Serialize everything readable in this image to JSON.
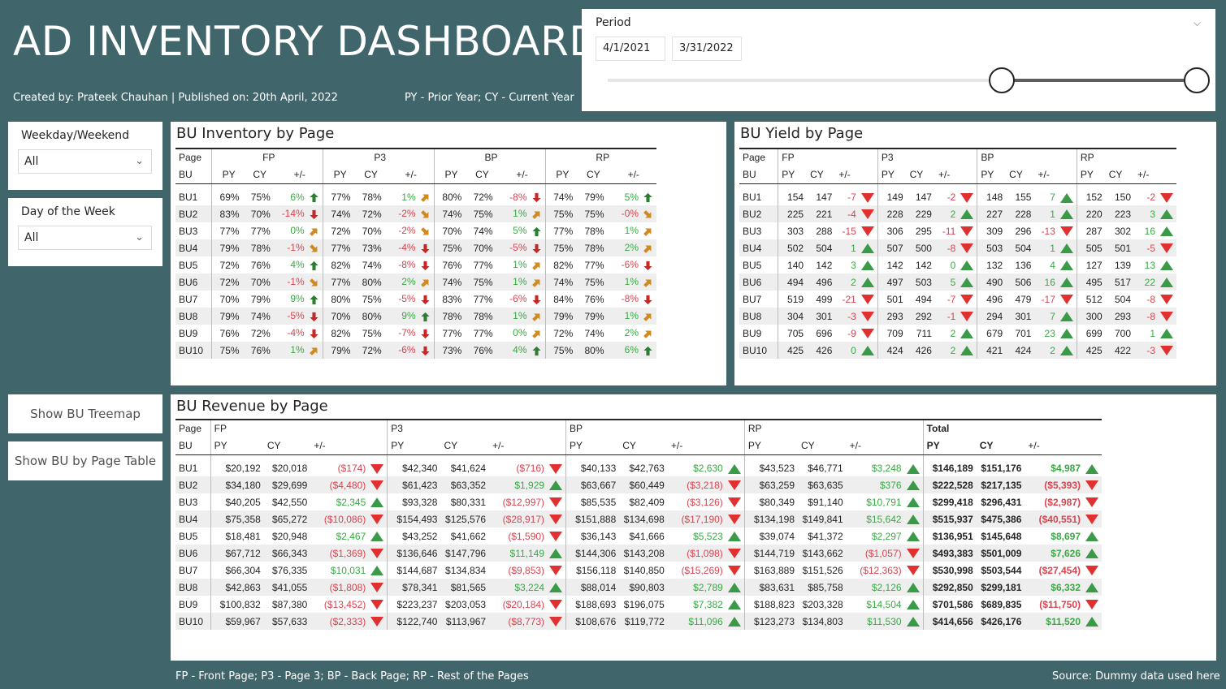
{
  "header": {
    "title": "AD INVENTORY DASHBOARD",
    "credits": "Created by: Prateek Chauhan | Published on: 20th April, 2022",
    "legend_note": "PY - Prior Year; CY - Current Year"
  },
  "period": {
    "label": "Period",
    "start": "4/1/2021",
    "end": "3/31/2022"
  },
  "filters": {
    "weekday_weekend": {
      "label": "Weekday/Weekend",
      "value": "All"
    },
    "day_of_week": {
      "label": "Day of the Week",
      "value": "All"
    }
  },
  "nav": {
    "treemap": "Show BU Treemap",
    "page_table": "Show BU by Page Table"
  },
  "footer": {
    "note": "FP - Front Page; P3 - Page 3; BP - Back Page; RP - Rest of the Pages",
    "source": "Source: Dummy data used here"
  },
  "labels": {
    "page": "Page",
    "bu": "BU",
    "py": "PY",
    "cy": "CY",
    "diff": "+/-",
    "total": "Total"
  },
  "pages": [
    "FP",
    "P3",
    "BP",
    "RP"
  ],
  "inventory": {
    "title": "BU Inventory by Page",
    "rows": [
      [
        "BU1",
        [
          "69%",
          "75%",
          "6%",
          "up"
        ],
        [
          "77%",
          "78%",
          "1%",
          "ur"
        ],
        [
          "80%",
          "72%",
          "-8%",
          "dn"
        ],
        [
          "74%",
          "79%",
          "5%",
          "up"
        ]
      ],
      [
        "BU2",
        [
          "83%",
          "70%",
          "-14%",
          "dn"
        ],
        [
          "74%",
          "72%",
          "-2%",
          "dr"
        ],
        [
          "74%",
          "75%",
          "1%",
          "ur"
        ],
        [
          "75%",
          "75%",
          "-0%",
          "dr"
        ]
      ],
      [
        "BU3",
        [
          "77%",
          "77%",
          "0%",
          "ur"
        ],
        [
          "72%",
          "70%",
          "-2%",
          "dr"
        ],
        [
          "70%",
          "74%",
          "5%",
          "up"
        ],
        [
          "77%",
          "78%",
          "1%",
          "ur"
        ]
      ],
      [
        "BU4",
        [
          "79%",
          "78%",
          "-1%",
          "dr"
        ],
        [
          "77%",
          "73%",
          "-4%",
          "dn"
        ],
        [
          "75%",
          "70%",
          "-5%",
          "dn"
        ],
        [
          "75%",
          "78%",
          "2%",
          "ur"
        ]
      ],
      [
        "BU5",
        [
          "72%",
          "76%",
          "4%",
          "up"
        ],
        [
          "82%",
          "74%",
          "-8%",
          "dn"
        ],
        [
          "76%",
          "77%",
          "1%",
          "ur"
        ],
        [
          "82%",
          "77%",
          "-6%",
          "dn"
        ]
      ],
      [
        "BU6",
        [
          "72%",
          "70%",
          "-1%",
          "dr"
        ],
        [
          "77%",
          "80%",
          "2%",
          "ur"
        ],
        [
          "74%",
          "75%",
          "1%",
          "ur"
        ],
        [
          "74%",
          "75%",
          "1%",
          "ur"
        ]
      ],
      [
        "BU7",
        [
          "70%",
          "79%",
          "9%",
          "up"
        ],
        [
          "80%",
          "75%",
          "-5%",
          "dn"
        ],
        [
          "83%",
          "77%",
          "-6%",
          "dn"
        ],
        [
          "84%",
          "76%",
          "-8%",
          "dn"
        ]
      ],
      [
        "BU8",
        [
          "79%",
          "74%",
          "-5%",
          "dn"
        ],
        [
          "70%",
          "80%",
          "9%",
          "up"
        ],
        [
          "78%",
          "78%",
          "1%",
          "ur"
        ],
        [
          "79%",
          "79%",
          "1%",
          "ur"
        ]
      ],
      [
        "BU9",
        [
          "76%",
          "72%",
          "-4%",
          "dn"
        ],
        [
          "82%",
          "75%",
          "-7%",
          "dn"
        ],
        [
          "77%",
          "77%",
          "0%",
          "ur"
        ],
        [
          "72%",
          "74%",
          "2%",
          "ur"
        ]
      ],
      [
        "BU10",
        [
          "75%",
          "76%",
          "1%",
          "ur"
        ],
        [
          "79%",
          "72%",
          "-6%",
          "dn"
        ],
        [
          "73%",
          "76%",
          "4%",
          "up"
        ],
        [
          "75%",
          "80%",
          "6%",
          "up"
        ]
      ]
    ]
  },
  "yield": {
    "title": "BU Yield by Page",
    "rows": [
      [
        "BU1",
        [
          "154",
          "147",
          "-7",
          "dn"
        ],
        [
          "149",
          "147",
          "-2",
          "dn"
        ],
        [
          "148",
          "155",
          "7",
          "up"
        ],
        [
          "152",
          "150",
          "-2",
          "dn"
        ]
      ],
      [
        "BU2",
        [
          "225",
          "221",
          "-4",
          "dn"
        ],
        [
          "228",
          "229",
          "2",
          "up"
        ],
        [
          "227",
          "228",
          "1",
          "up"
        ],
        [
          "220",
          "223",
          "3",
          "up"
        ]
      ],
      [
        "BU3",
        [
          "303",
          "288",
          "-15",
          "dn"
        ],
        [
          "306",
          "295",
          "-11",
          "dn"
        ],
        [
          "309",
          "296",
          "-13",
          "dn"
        ],
        [
          "287",
          "302",
          "16",
          "up"
        ]
      ],
      [
        "BU4",
        [
          "502",
          "504",
          "1",
          "up"
        ],
        [
          "507",
          "500",
          "-8",
          "dn"
        ],
        [
          "503",
          "504",
          "1",
          "up"
        ],
        [
          "505",
          "501",
          "-5",
          "dn"
        ]
      ],
      [
        "BU5",
        [
          "140",
          "142",
          "3",
          "up"
        ],
        [
          "142",
          "142",
          "0",
          "up"
        ],
        [
          "132",
          "136",
          "4",
          "up"
        ],
        [
          "127",
          "139",
          "13",
          "up"
        ]
      ],
      [
        "BU6",
        [
          "494",
          "496",
          "2",
          "up"
        ],
        [
          "497",
          "503",
          "5",
          "up"
        ],
        [
          "490",
          "506",
          "16",
          "up"
        ],
        [
          "495",
          "517",
          "22",
          "up"
        ]
      ],
      [
        "BU7",
        [
          "519",
          "499",
          "-21",
          "dn"
        ],
        [
          "501",
          "494",
          "-7",
          "dn"
        ],
        [
          "496",
          "479",
          "-17",
          "dn"
        ],
        [
          "512",
          "504",
          "-8",
          "dn"
        ]
      ],
      [
        "BU8",
        [
          "304",
          "301",
          "-3",
          "dn"
        ],
        [
          "293",
          "292",
          "-1",
          "dn"
        ],
        [
          "294",
          "301",
          "7",
          "up"
        ],
        [
          "300",
          "293",
          "-8",
          "dn"
        ]
      ],
      [
        "BU9",
        [
          "705",
          "696",
          "-9",
          "dn"
        ],
        [
          "709",
          "711",
          "2",
          "up"
        ],
        [
          "679",
          "701",
          "23",
          "up"
        ],
        [
          "699",
          "700",
          "1",
          "up"
        ]
      ],
      [
        "BU10",
        [
          "425",
          "426",
          "0",
          "up"
        ],
        [
          "424",
          "426",
          "2",
          "up"
        ],
        [
          "421",
          "424",
          "2",
          "up"
        ],
        [
          "425",
          "422",
          "-3",
          "dn"
        ]
      ]
    ]
  },
  "revenue": {
    "title": "BU Revenue by Page",
    "rows": [
      [
        "BU1",
        [
          "$20,192",
          "$20,018",
          "($174)",
          "dn"
        ],
        [
          "$42,340",
          "$41,624",
          "($716)",
          "dn"
        ],
        [
          "$40,133",
          "$42,763",
          "$2,630",
          "up"
        ],
        [
          "$43,523",
          "$46,771",
          "$3,248",
          "up"
        ],
        [
          "$146,189",
          "$151,176",
          "$4,987",
          "up"
        ]
      ],
      [
        "BU2",
        [
          "$34,180",
          "$29,699",
          "($4,480)",
          "dn"
        ],
        [
          "$61,423",
          "$63,352",
          "$1,929",
          "up"
        ],
        [
          "$63,667",
          "$60,449",
          "($3,218)",
          "dn"
        ],
        [
          "$63,259",
          "$63,635",
          "$376",
          "up"
        ],
        [
          "$222,528",
          "$217,135",
          "($5,393)",
          "dn"
        ]
      ],
      [
        "BU3",
        [
          "$40,205",
          "$42,550",
          "$2,345",
          "up"
        ],
        [
          "$93,328",
          "$80,331",
          "($12,997)",
          "dn"
        ],
        [
          "$85,535",
          "$82,409",
          "($3,126)",
          "dn"
        ],
        [
          "$80,349",
          "$91,140",
          "$10,791",
          "up"
        ],
        [
          "$299,418",
          "$296,431",
          "($2,987)",
          "dn"
        ]
      ],
      [
        "BU4",
        [
          "$75,358",
          "$65,272",
          "($10,086)",
          "dn"
        ],
        [
          "$154,493",
          "$125,576",
          "($28,917)",
          "dn"
        ],
        [
          "$151,888",
          "$134,698",
          "($17,190)",
          "dn"
        ],
        [
          "$134,198",
          "$149,841",
          "$15,642",
          "up"
        ],
        [
          "$515,937",
          "$475,386",
          "($40,551)",
          "dn"
        ]
      ],
      [
        "BU5",
        [
          "$18,481",
          "$20,948",
          "$2,467",
          "up"
        ],
        [
          "$43,252",
          "$41,662",
          "($1,590)",
          "dn"
        ],
        [
          "$36,143",
          "$41,666",
          "$5,523",
          "up"
        ],
        [
          "$39,074",
          "$41,372",
          "$2,297",
          "up"
        ],
        [
          "$136,951",
          "$145,648",
          "$8,697",
          "up"
        ]
      ],
      [
        "BU6",
        [
          "$67,712",
          "$66,343",
          "($1,369)",
          "dn"
        ],
        [
          "$136,646",
          "$147,796",
          "$11,149",
          "up"
        ],
        [
          "$144,306",
          "$143,208",
          "($1,098)",
          "dn"
        ],
        [
          "$144,719",
          "$143,662",
          "($1,057)",
          "dn"
        ],
        [
          "$493,383",
          "$501,009",
          "$7,626",
          "up"
        ]
      ],
      [
        "BU7",
        [
          "$66,304",
          "$76,335",
          "$10,031",
          "up"
        ],
        [
          "$144,687",
          "$134,834",
          "($9,853)",
          "dn"
        ],
        [
          "$156,118",
          "$140,850",
          "($15,269)",
          "dn"
        ],
        [
          "$163,889",
          "$151,526",
          "($12,363)",
          "dn"
        ],
        [
          "$530,998",
          "$503,544",
          "($27,454)",
          "dn"
        ]
      ],
      [
        "BU8",
        [
          "$42,863",
          "$41,055",
          "($1,808)",
          "dn"
        ],
        [
          "$78,341",
          "$81,565",
          "$3,224",
          "up"
        ],
        [
          "$88,014",
          "$90,803",
          "$2,789",
          "up"
        ],
        [
          "$83,631",
          "$85,758",
          "$2,126",
          "up"
        ],
        [
          "$292,850",
          "$299,181",
          "$6,332",
          "up"
        ]
      ],
      [
        "BU9",
        [
          "$100,832",
          "$87,380",
          "($13,452)",
          "dn"
        ],
        [
          "$223,237",
          "$203,053",
          "($20,184)",
          "dn"
        ],
        [
          "$188,693",
          "$196,075",
          "$7,382",
          "up"
        ],
        [
          "$188,823",
          "$203,328",
          "$14,504",
          "up"
        ],
        [
          "$701,586",
          "$689,835",
          "($11,750)",
          "dn"
        ]
      ],
      [
        "BU10",
        [
          "$59,967",
          "$57,633",
          "($2,333)",
          "dn"
        ],
        [
          "$122,740",
          "$113,967",
          "($8,773)",
          "dn"
        ],
        [
          "$108,676",
          "$119,772",
          "$11,096",
          "up"
        ],
        [
          "$123,273",
          "$134,803",
          "$11,530",
          "up"
        ],
        [
          "$414,656",
          "$426,176",
          "$11,520",
          "up"
        ]
      ]
    ]
  },
  "colors": {
    "background": "#40666c",
    "positive": "#3aa845",
    "negative": "#d64550",
    "arrow_up": "#2e7d32",
    "arrow_down": "#c62828",
    "arrow_diag": "#d08a1e",
    "tri_up": "#3b9a47",
    "tri_down": "#e03030"
  },
  "icons": {
    "arrow_up": "arrow-up-icon",
    "arrow_down": "arrow-down-icon",
    "arrow_up_right": "arrow-up-right-icon",
    "arrow_down_right": "arrow-down-right-icon",
    "triangle_up": "triangle-up-icon",
    "triangle_down": "triangle-down-icon",
    "chevron": "chevron-down-icon"
  }
}
